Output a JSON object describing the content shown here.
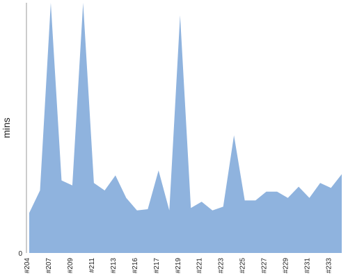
{
  "chart_data": {
    "type": "area",
    "title": "",
    "xlabel": "",
    "ylabel": "mins",
    "y_ticks": [
      0
    ],
    "x_tick_labels": [
      "#204",
      "#207",
      "#209",
      "#211",
      "#213",
      "#216",
      "#217",
      "#219",
      "#221",
      "#223",
      "#225",
      "#227",
      "#229",
      "#231",
      "#233"
    ],
    "x_tick_positions": [
      0,
      2,
      4,
      6,
      8,
      10,
      12,
      14,
      16,
      18,
      20,
      22,
      24,
      26,
      28
    ],
    "x": [
      0,
      1,
      2,
      3,
      4,
      5,
      6,
      7,
      8,
      9,
      10,
      11,
      12,
      13,
      14,
      15,
      16,
      17,
      18,
      19,
      20,
      21,
      22,
      23,
      24,
      25,
      26,
      27,
      28,
      29
    ],
    "series": [
      {
        "values": [
          16,
          25,
          100,
          29,
          27,
          100,
          28,
          25,
          31,
          22,
          17,
          17.5,
          33,
          17,
          95,
          18,
          20.5,
          17,
          18.5,
          47,
          21,
          21,
          24.5,
          24.5,
          22,
          26.5,
          22,
          28,
          26,
          31.5
        ]
      }
    ],
    "ylim": [
      0,
      100
    ],
    "colors": {
      "area": "#8fb3de",
      "axis": "#9a9a9a",
      "text": "#222222"
    },
    "grid": false,
    "legend": "none"
  }
}
